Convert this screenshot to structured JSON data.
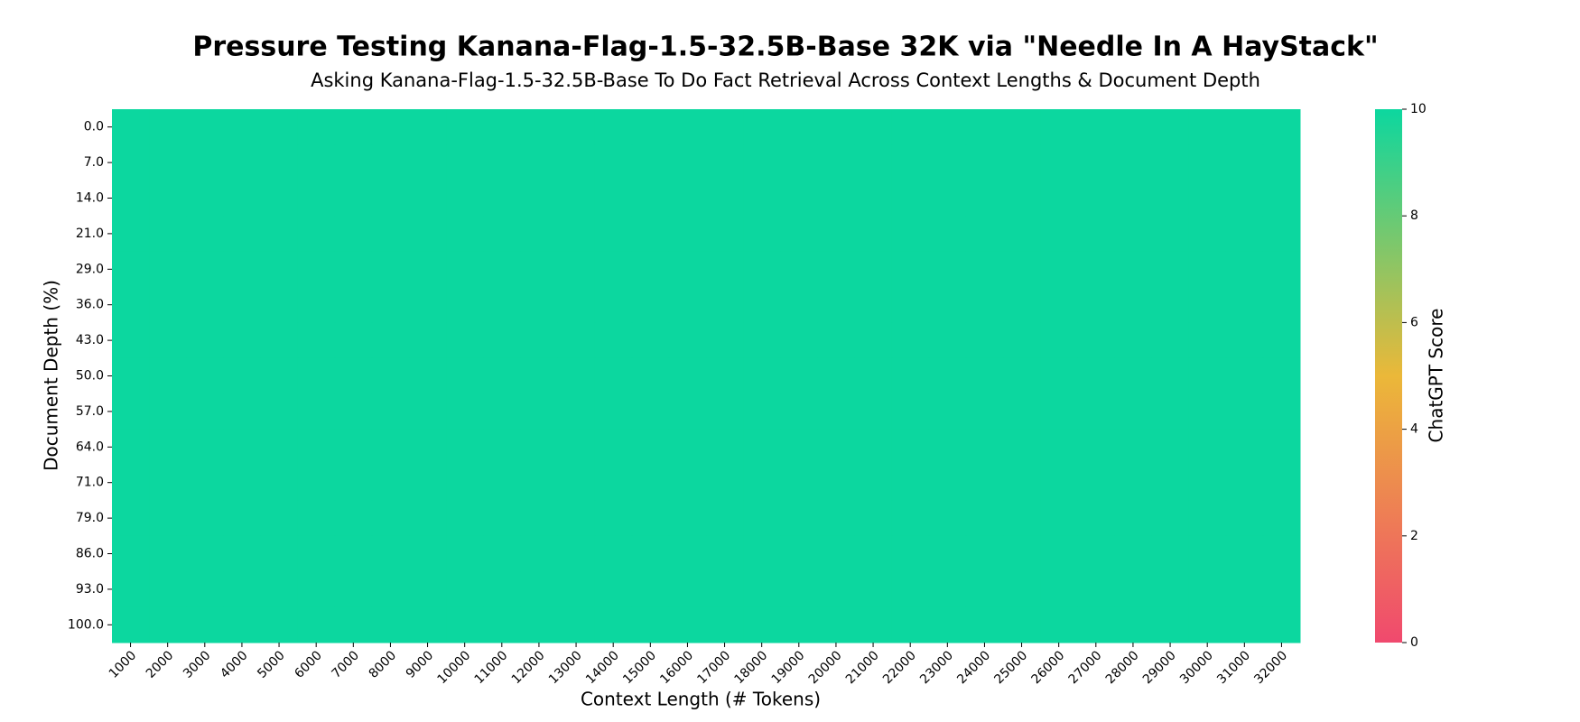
{
  "chart_data": {
    "type": "heatmap",
    "title": "Pressure Testing Kanana-Flag-1.5-32.5B-Base 32K via \"Needle In A HayStack\"",
    "subtitle": "Asking Kanana-Flag-1.5-32.5B-Base To Do Fact Retrieval Across Context Lengths & Document Depth",
    "x_label": "Context Length (# Tokens)",
    "y_label": "Document Depth (%)",
    "x_categories": [
      "1000",
      "2000",
      "3000",
      "4000",
      "5000",
      "6000",
      "7000",
      "8000",
      "9000",
      "10000",
      "11000",
      "12000",
      "13000",
      "14000",
      "15000",
      "16000",
      "17000",
      "18000",
      "19000",
      "20000",
      "21000",
      "22000",
      "23000",
      "24000",
      "25000",
      "26000",
      "27000",
      "28000",
      "29000",
      "30000",
      "31000",
      "32000"
    ],
    "y_categories": [
      "0.0",
      "7.0",
      "14.0",
      "21.0",
      "29.0",
      "36.0",
      "43.0",
      "50.0",
      "57.0",
      "64.0",
      "71.0",
      "79.0",
      "86.0",
      "93.0",
      "100.0"
    ],
    "values": [
      [
        10,
        10,
        10,
        10,
        10,
        10,
        10,
        10,
        10,
        10,
        10,
        10,
        10,
        10,
        10,
        10,
        10,
        10,
        10,
        10,
        10,
        10,
        10,
        10,
        10,
        10,
        10,
        10,
        10,
        10,
        10,
        10
      ],
      [
        10,
        10,
        10,
        10,
        10,
        10,
        10,
        10,
        10,
        10,
        10,
        10,
        10,
        10,
        10,
        10,
        10,
        10,
        10,
        10,
        10,
        10,
        10,
        10,
        10,
        10,
        10,
        10,
        10,
        10,
        10,
        10
      ],
      [
        10,
        10,
        10,
        10,
        10,
        10,
        10,
        10,
        10,
        10,
        10,
        10,
        10,
        10,
        10,
        10,
        10,
        10,
        10,
        10,
        10,
        10,
        10,
        10,
        10,
        10,
        10,
        10,
        10,
        10,
        10,
        10
      ],
      [
        10,
        10,
        10,
        10,
        10,
        10,
        10,
        10,
        10,
        10,
        10,
        10,
        10,
        10,
        10,
        10,
        10,
        10,
        10,
        10,
        10,
        10,
        10,
        10,
        10,
        10,
        10,
        10,
        10,
        10,
        10,
        10
      ],
      [
        10,
        10,
        10,
        10,
        10,
        10,
        10,
        10,
        10,
        10,
        10,
        10,
        10,
        10,
        10,
        10,
        10,
        10,
        10,
        10,
        10,
        10,
        10,
        10,
        10,
        10,
        10,
        10,
        10,
        10,
        10,
        10
      ],
      [
        10,
        10,
        10,
        10,
        10,
        10,
        10,
        10,
        10,
        10,
        10,
        10,
        10,
        10,
        10,
        10,
        10,
        10,
        10,
        10,
        10,
        10,
        10,
        10,
        10,
        10,
        10,
        10,
        10,
        10,
        10,
        10
      ],
      [
        10,
        10,
        10,
        10,
        10,
        10,
        10,
        10,
        10,
        10,
        10,
        10,
        10,
        10,
        10,
        10,
        10,
        10,
        10,
        10,
        10,
        10,
        10,
        10,
        10,
        10,
        10,
        10,
        10,
        10,
        10,
        10
      ],
      [
        10,
        10,
        10,
        10,
        10,
        10,
        10,
        10,
        10,
        10,
        10,
        10,
        10,
        10,
        10,
        10,
        10,
        10,
        10,
        10,
        10,
        10,
        10,
        10,
        10,
        10,
        10,
        10,
        10,
        10,
        10,
        10
      ],
      [
        10,
        10,
        10,
        10,
        10,
        10,
        10,
        10,
        10,
        10,
        10,
        10,
        10,
        10,
        10,
        10,
        10,
        10,
        10,
        10,
        10,
        10,
        10,
        10,
        10,
        10,
        10,
        10,
        10,
        10,
        10,
        10
      ],
      [
        10,
        10,
        10,
        10,
        10,
        10,
        10,
        10,
        10,
        10,
        10,
        10,
        10,
        10,
        10,
        10,
        10,
        10,
        10,
        10,
        10,
        10,
        10,
        10,
        10,
        10,
        10,
        10,
        10,
        10,
        10,
        10
      ],
      [
        10,
        10,
        10,
        10,
        10,
        10,
        10,
        10,
        10,
        10,
        10,
        10,
        10,
        10,
        10,
        10,
        10,
        10,
        10,
        10,
        10,
        10,
        10,
        10,
        10,
        10,
        10,
        10,
        10,
        10,
        10,
        10
      ],
      [
        10,
        10,
        10,
        10,
        10,
        10,
        10,
        10,
        10,
        10,
        10,
        10,
        10,
        10,
        10,
        10,
        10,
        10,
        10,
        10,
        10,
        10,
        10,
        10,
        10,
        10,
        10,
        10,
        10,
        10,
        10,
        10
      ],
      [
        10,
        10,
        10,
        10,
        10,
        10,
        10,
        10,
        10,
        10,
        10,
        10,
        10,
        10,
        10,
        10,
        10,
        10,
        10,
        10,
        10,
        10,
        10,
        10,
        10,
        10,
        10,
        10,
        10,
        10,
        10,
        10
      ],
      [
        10,
        10,
        10,
        10,
        10,
        10,
        10,
        10,
        10,
        10,
        10,
        10,
        10,
        10,
        10,
        10,
        10,
        10,
        10,
        10,
        10,
        10,
        10,
        10,
        10,
        10,
        10,
        10,
        10,
        10,
        10,
        10
      ],
      [
        10,
        10,
        10,
        10,
        10,
        10,
        10,
        10,
        10,
        10,
        10,
        10,
        10,
        10,
        10,
        10,
        10,
        10,
        10,
        10,
        10,
        10,
        10,
        10,
        10,
        10,
        10,
        10,
        10,
        10,
        10,
        10
      ]
    ],
    "colorbar": {
      "label": "ChatGPT Score",
      "lim": [
        0,
        10
      ],
      "ticks": [
        0,
        2,
        4,
        6,
        8,
        10
      ],
      "colors": [
        "#F0496E",
        "#EBB839",
        "#0CD79F"
      ]
    }
  }
}
